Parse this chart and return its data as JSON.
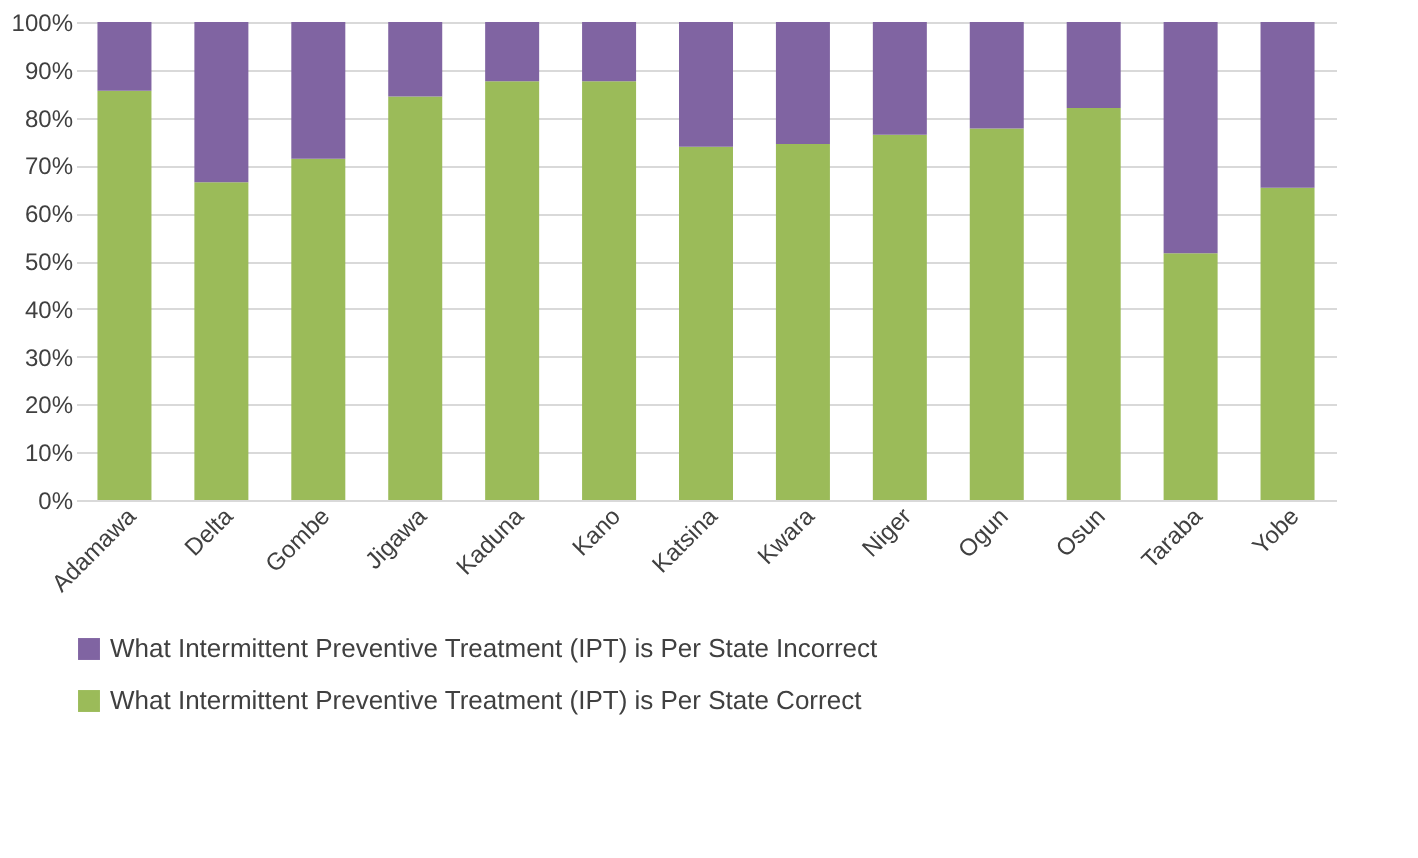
{
  "chart_data": {
    "type": "bar",
    "stacked": true,
    "categories": [
      "Adamawa",
      "Delta",
      "Gombe",
      "Jigawa",
      "Kaduna",
      "Kano",
      "Katsina",
      "Kwara",
      "Niger",
      "Ogun",
      "Osun",
      "Taraba",
      "Yobe"
    ],
    "series": [
      {
        "name": "What Intermittent Preventive Treatment (IPT)  is Per State Correct",
        "color": "#9bbb59",
        "values": [
          85.6,
          66.5,
          71.4,
          84.4,
          87.6,
          87.6,
          73.9,
          74.5,
          76.4,
          77.7,
          82.0,
          51.6,
          65.3
        ]
      },
      {
        "name": "What Intermittent Preventive Treatment (IPT)  is Per State Incorrect",
        "color": "#8064a2",
        "values": [
          14.4,
          33.5,
          28.6,
          15.6,
          12.4,
          12.4,
          26.1,
          25.5,
          23.6,
          22.3,
          18.0,
          48.4,
          34.7
        ]
      }
    ],
    "ylim": [
      0,
      100
    ],
    "yticks": [
      {
        "value": 0,
        "label": "0%"
      },
      {
        "value": 10,
        "label": "10%"
      },
      {
        "value": 20,
        "label": "20%"
      },
      {
        "value": 30,
        "label": "30%"
      },
      {
        "value": 40,
        "label": "40%"
      },
      {
        "value": 50,
        "label": "50%"
      },
      {
        "value": 60,
        "label": "60%"
      },
      {
        "value": 70,
        "label": "70%"
      },
      {
        "value": 80,
        "label": "80%"
      },
      {
        "value": 90,
        "label": "90%"
      },
      {
        "value": 100,
        "label": "100%"
      }
    ],
    "grid": "y",
    "legend": "bottom"
  }
}
